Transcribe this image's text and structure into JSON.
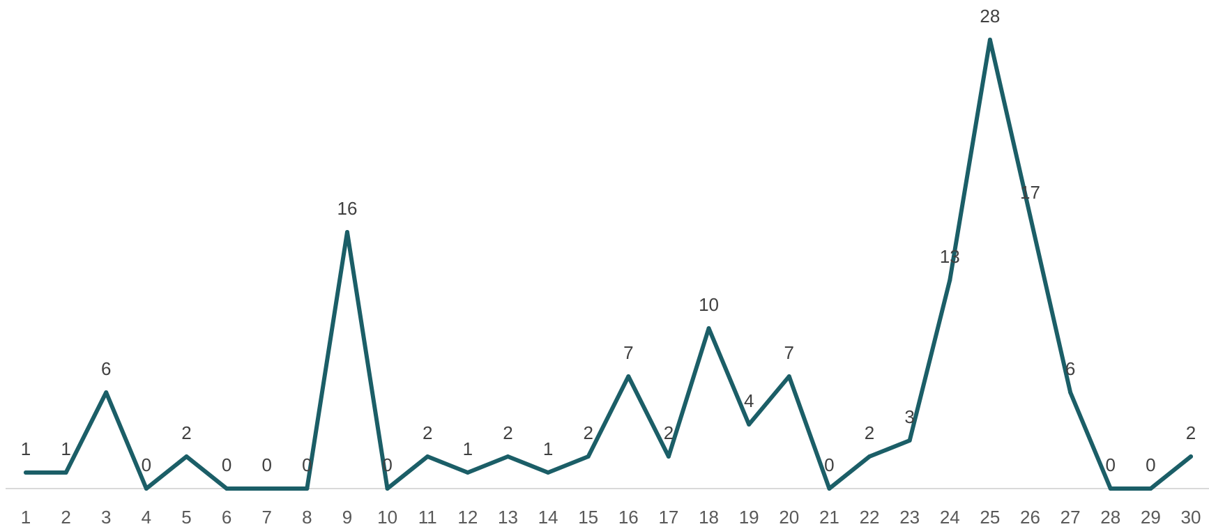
{
  "chart_data": {
    "type": "line",
    "title": "",
    "xlabel": "",
    "ylabel": "",
    "categories": [
      "1",
      "2",
      "3",
      "4",
      "5",
      "6",
      "7",
      "8",
      "9",
      "10",
      "11",
      "12",
      "13",
      "14",
      "15",
      "16",
      "17",
      "18",
      "19",
      "20",
      "21",
      "22",
      "23",
      "24",
      "25",
      "26",
      "27",
      "28",
      "29",
      "30"
    ],
    "series": [
      {
        "values": [
          1,
          1,
          6,
          0,
          2,
          0,
          0,
          0,
          16,
          0,
          2,
          1,
          2,
          1,
          2,
          7,
          2,
          10,
          4,
          7,
          0,
          2,
          3,
          13,
          28,
          17,
          6,
          0,
          0,
          2
        ],
        "color": "#1b5e67"
      }
    ],
    "ylim": [
      0,
      28
    ],
    "data_labels": true,
    "grid": false,
    "legend": "none",
    "axis_color": "#d9d9d9"
  }
}
